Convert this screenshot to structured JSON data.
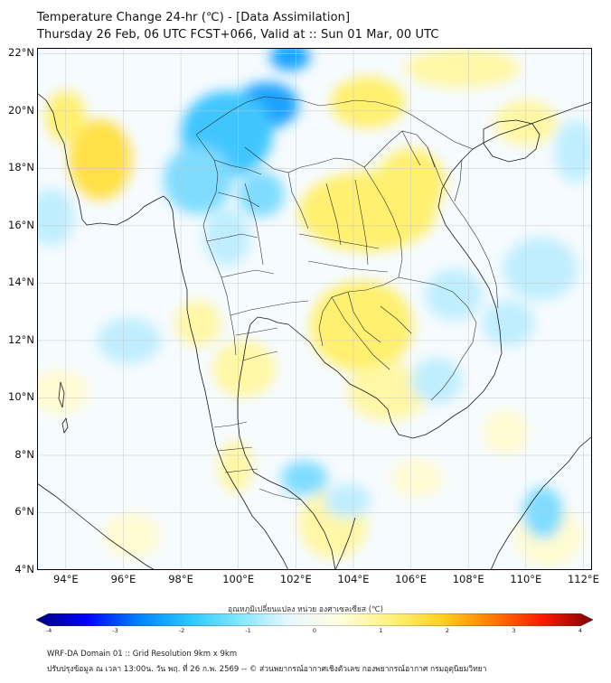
{
  "header": {
    "title_line1": "Temperature Change 24-hr (℃) - [Data Assimilation]",
    "title_line2": "Thursday 26 Feb, 06 UTC FCST+066, Valid at :: Sun 01 Mar, 00 UTC"
  },
  "map": {
    "lat_labels": [
      "22°N",
      "20°N",
      "18°N",
      "16°N",
      "14°N",
      "12°N",
      "10°N",
      "8°N",
      "6°N",
      "4°N"
    ],
    "lon_labels": [
      "94°E",
      "96°E",
      "98°E",
      "100°E",
      "102°E",
      "104°E",
      "106°E",
      "108°E",
      "110°E",
      "112°E"
    ],
    "extent": {
      "lon_min": 93,
      "lon_max": 112.3,
      "lat_min": 4,
      "lat_max": 22.2
    },
    "anomalies": [
      {
        "lon": 101.0,
        "lat": 20.2,
        "value": -1.6,
        "rlon": 1.1,
        "rlat": 0.8
      },
      {
        "lon": 101.8,
        "lat": 21.9,
        "value": -1.5,
        "rlon": 0.7,
        "rlat": 0.5
      },
      {
        "lon": 99.6,
        "lat": 19.2,
        "value": -1.1,
        "rlon": 1.6,
        "rlat": 1.5
      },
      {
        "lon": 98.6,
        "lat": 17.6,
        "value": -0.8,
        "rlon": 1.2,
        "rlat": 1.2
      },
      {
        "lon": 100.8,
        "lat": 17.1,
        "value": -0.55,
        "rlon": 0.8,
        "rlat": 0.8
      },
      {
        "lon": 99.6,
        "lat": 15.6,
        "value": -0.35,
        "rlon": 0.8,
        "rlat": 1.0
      },
      {
        "lon": 95.2,
        "lat": 18.3,
        "value": 1.0,
        "rlon": 1.1,
        "rlat": 1.4
      },
      {
        "lon": 94.0,
        "lat": 19.8,
        "value": 0.7,
        "rlon": 0.7,
        "rlat": 0.9
      },
      {
        "lon": 104.5,
        "lat": 20.3,
        "value": 0.8,
        "rlon": 1.3,
        "rlat": 0.9
      },
      {
        "lon": 107.8,
        "lat": 21.5,
        "value": 0.5,
        "rlon": 2.0,
        "rlat": 0.7
      },
      {
        "lon": 110.0,
        "lat": 19.6,
        "value": 0.55,
        "rlon": 1.1,
        "rlat": 0.8
      },
      {
        "lon": 104.5,
        "lat": 16.5,
        "value": 0.85,
        "rlon": 2.4,
        "rlat": 1.4
      },
      {
        "lon": 106.0,
        "lat": 17.5,
        "value": 0.7,
        "rlon": 1.2,
        "rlat": 1.2
      },
      {
        "lon": 104.3,
        "lat": 12.5,
        "value": 0.8,
        "rlon": 1.8,
        "rlat": 1.6
      },
      {
        "lon": 105.2,
        "lat": 10.2,
        "value": 0.45,
        "rlon": 1.4,
        "rlat": 1.0
      },
      {
        "lon": 98.6,
        "lat": 12.6,
        "value": 0.5,
        "rlon": 0.8,
        "rlat": 0.8
      },
      {
        "lon": 100.2,
        "lat": 11.0,
        "value": 0.45,
        "rlon": 1.1,
        "rlat": 1.0
      },
      {
        "lon": 93.8,
        "lat": 10.2,
        "value": 0.35,
        "rlon": 1.0,
        "rlat": 0.8
      },
      {
        "lon": 99.9,
        "lat": 7.6,
        "value": 0.55,
        "rlon": 0.6,
        "rlat": 0.9
      },
      {
        "lon": 103.3,
        "lat": 5.6,
        "value": 0.45,
        "rlon": 1.2,
        "rlat": 1.2
      },
      {
        "lon": 106.2,
        "lat": 7.2,
        "value": 0.35,
        "rlon": 0.9,
        "rlat": 0.7
      },
      {
        "lon": 109.3,
        "lat": 8.8,
        "value": 0.35,
        "rlon": 0.8,
        "rlat": 0.8
      },
      {
        "lon": 96.3,
        "lat": 5.2,
        "value": 0.3,
        "rlon": 1.0,
        "rlat": 0.8
      },
      {
        "lon": 110.8,
        "lat": 5.2,
        "value": 0.35,
        "rlon": 1.2,
        "rlat": 1.1
      },
      {
        "lon": 107.5,
        "lat": 13.6,
        "value": -0.45,
        "rlon": 1.0,
        "rlat": 0.9
      },
      {
        "lon": 110.5,
        "lat": 14.5,
        "value": -0.3,
        "rlon": 1.3,
        "rlat": 1.1
      },
      {
        "lon": 109.4,
        "lat": 12.6,
        "value": -0.3,
        "rlon": 0.9,
        "rlat": 0.8
      },
      {
        "lon": 96.2,
        "lat": 12.0,
        "value": -0.45,
        "rlon": 1.1,
        "rlat": 0.8
      },
      {
        "lon": 93.5,
        "lat": 16.3,
        "value": -0.35,
        "rlon": 0.8,
        "rlat": 1.0
      },
      {
        "lon": 102.3,
        "lat": 7.2,
        "value": -0.55,
        "rlon": 0.8,
        "rlat": 0.6
      },
      {
        "lon": 103.8,
        "lat": 6.4,
        "value": -0.35,
        "rlon": 0.8,
        "rlat": 0.6
      },
      {
        "lon": 110.6,
        "lat": 6.0,
        "value": -0.55,
        "rlon": 0.7,
        "rlat": 0.9
      },
      {
        "lon": 111.7,
        "lat": 18.6,
        "value": -0.3,
        "rlon": 0.7,
        "rlat": 1.1
      },
      {
        "lon": 106.9,
        "lat": 10.6,
        "value": -0.3,
        "rlon": 0.9,
        "rlat": 0.8
      }
    ]
  },
  "colorbar": {
    "title": "อุณหภูมิเปลี่ยนแปลง หน่วย องศาเซลเซียส (℃)",
    "ticks": [
      "-4",
      "-3",
      "-2",
      "-1",
      "0",
      "1",
      "2",
      "3",
      "4"
    ],
    "min": -4,
    "max": 4,
    "colors": [
      "#00007f",
      "#0000ff",
      "#0080ff",
      "#29c6ff",
      "#7fe7ff",
      "#e8f7ff",
      "#fffde0",
      "#fff27f",
      "#ffd21f",
      "#ff7b00",
      "#ff1a00",
      "#7f0000"
    ]
  },
  "footer": {
    "line1": "WRF-DA Domain 01 :: Grid Resolution 9km x 9km",
    "line2": "ปรับปรุงข้อมูล ณ เวลา 13:00น. วัน พฤ. ที่ 26 ก.พ. 2569 -- © ส่วนพยากรณ์อากาศเชิงตัวเลข กองพยากรณ์อากาศ กรมอุตุนิยมวิทยา"
  }
}
